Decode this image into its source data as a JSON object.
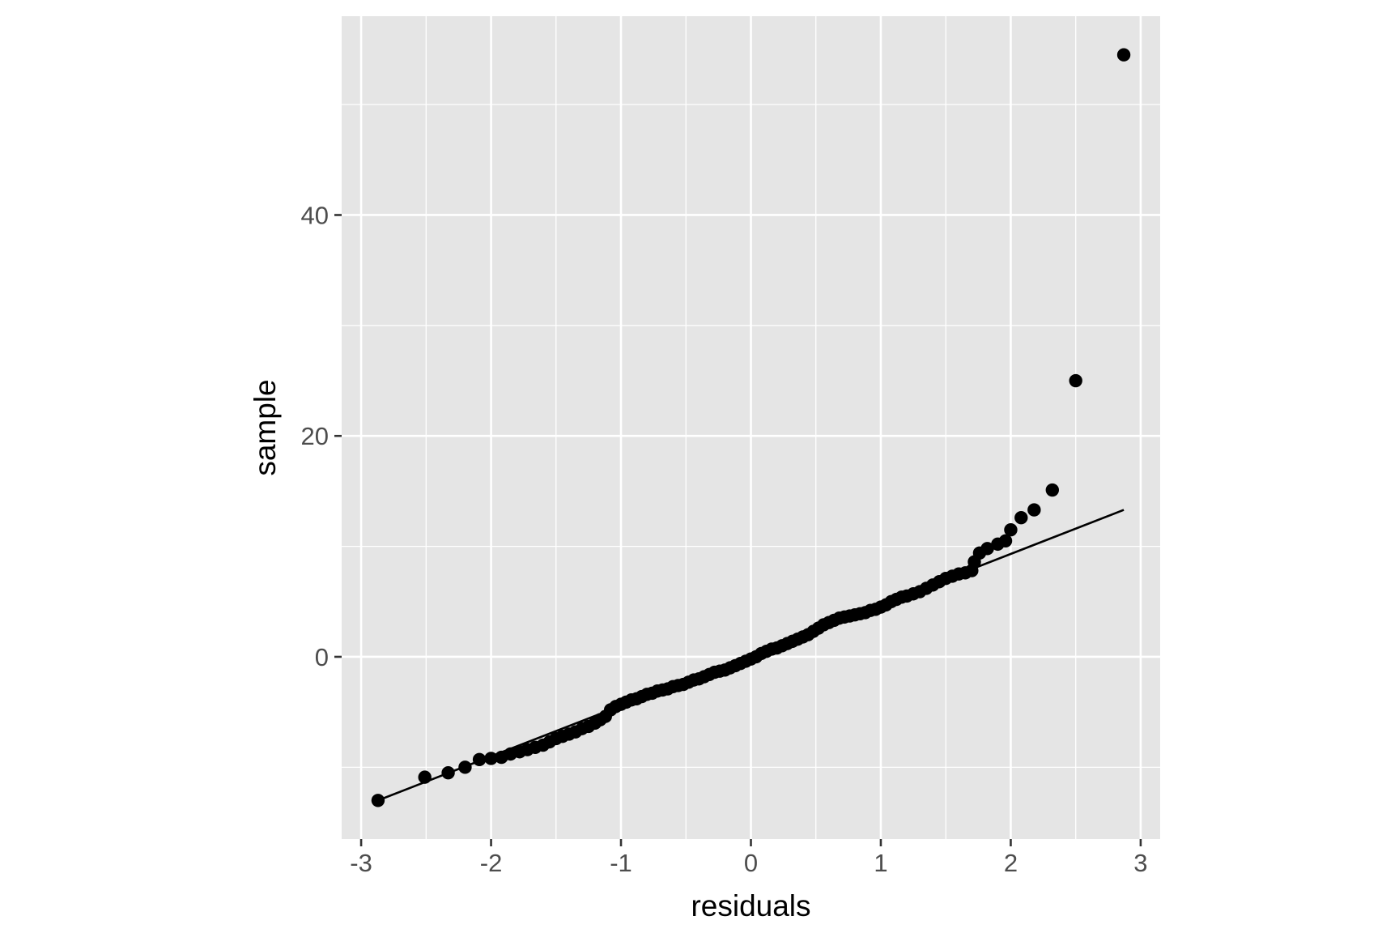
{
  "chart_data": {
    "type": "scatter",
    "subtype": "qq-plot",
    "xlabel": "residuals",
    "ylabel": "sample",
    "xlim": [
      -3.15,
      3.15
    ],
    "ylim": [
      -16.5,
      58
    ],
    "x_ticks": [
      -3,
      -2,
      -1,
      0,
      1,
      2,
      3
    ],
    "x_tick_labels": [
      "-3",
      "-2",
      "-1",
      "0",
      "1",
      "2",
      "3"
    ],
    "y_ticks": [
      0,
      20,
      40
    ],
    "y_tick_labels": [
      "0",
      "20",
      "40"
    ],
    "grid": true,
    "background_color": "#e5e5e5",
    "grid_color": "#ffffff",
    "point_color": "#000000",
    "reference_line": {
      "x": [
        -2.87,
        2.87
      ],
      "y": [
        -13.0,
        13.3
      ]
    },
    "series": [
      {
        "points": [
          [
            -2.87,
            -13.0
          ],
          [
            -2.51,
            -10.9
          ],
          [
            -2.33,
            -10.5
          ],
          [
            -2.2,
            -10.0
          ],
          [
            -2.09,
            -9.3
          ],
          [
            -2.0,
            -9.2
          ],
          [
            -1.92,
            -9.1
          ],
          [
            -1.85,
            -8.8
          ],
          [
            -1.78,
            -8.6
          ],
          [
            -1.72,
            -8.4
          ],
          [
            -1.66,
            -8.2
          ],
          [
            -1.6,
            -8.0
          ],
          [
            -1.55,
            -7.7
          ],
          [
            -1.5,
            -7.4
          ],
          [
            -1.45,
            -7.2
          ],
          [
            -1.4,
            -7.0
          ],
          [
            -1.35,
            -6.8
          ],
          [
            -1.3,
            -6.5
          ],
          [
            -1.25,
            -6.3
          ],
          [
            -1.2,
            -6.0
          ],
          [
            -1.16,
            -5.7
          ],
          [
            -1.12,
            -5.4
          ],
          [
            -1.08,
            -4.8
          ],
          [
            -1.04,
            -4.5
          ],
          [
            -1.0,
            -4.3
          ],
          [
            -0.96,
            -4.1
          ],
          [
            -0.92,
            -3.9
          ],
          [
            -0.88,
            -3.8
          ],
          [
            -0.84,
            -3.6
          ],
          [
            -0.8,
            -3.4
          ],
          [
            -0.76,
            -3.3
          ],
          [
            -0.72,
            -3.1
          ],
          [
            -0.68,
            -3.0
          ],
          [
            -0.64,
            -2.9
          ],
          [
            -0.6,
            -2.7
          ],
          [
            -0.56,
            -2.6
          ],
          [
            -0.52,
            -2.5
          ],
          [
            -0.48,
            -2.3
          ],
          [
            -0.44,
            -2.1
          ],
          [
            -0.4,
            -2.0
          ],
          [
            -0.36,
            -1.8
          ],
          [
            -0.32,
            -1.6
          ],
          [
            -0.28,
            -1.4
          ],
          [
            -0.24,
            -1.3
          ],
          [
            -0.2,
            -1.2
          ],
          [
            -0.16,
            -1.0
          ],
          [
            -0.12,
            -0.8
          ],
          [
            -0.08,
            -0.6
          ],
          [
            -0.04,
            -0.4
          ],
          [
            0.0,
            -0.2
          ],
          [
            0.04,
            0.0
          ],
          [
            0.08,
            0.3
          ],
          [
            0.12,
            0.5
          ],
          [
            0.16,
            0.7
          ],
          [
            0.2,
            0.8
          ],
          [
            0.24,
            1.0
          ],
          [
            0.28,
            1.2
          ],
          [
            0.32,
            1.4
          ],
          [
            0.36,
            1.6
          ],
          [
            0.4,
            1.8
          ],
          [
            0.44,
            2.0
          ],
          [
            0.48,
            2.3
          ],
          [
            0.52,
            2.6
          ],
          [
            0.56,
            2.9
          ],
          [
            0.6,
            3.1
          ],
          [
            0.64,
            3.3
          ],
          [
            0.68,
            3.5
          ],
          [
            0.72,
            3.6
          ],
          [
            0.76,
            3.7
          ],
          [
            0.8,
            3.8
          ],
          [
            0.84,
            3.9
          ],
          [
            0.88,
            4.0
          ],
          [
            0.92,
            4.2
          ],
          [
            0.96,
            4.3
          ],
          [
            1.0,
            4.5
          ],
          [
            1.04,
            4.7
          ],
          [
            1.08,
            5.0
          ],
          [
            1.12,
            5.2
          ],
          [
            1.16,
            5.4
          ],
          [
            1.2,
            5.5
          ],
          [
            1.25,
            5.7
          ],
          [
            1.3,
            5.9
          ],
          [
            1.35,
            6.2
          ],
          [
            1.4,
            6.5
          ],
          [
            1.45,
            6.8
          ],
          [
            1.5,
            7.1
          ],
          [
            1.55,
            7.3
          ],
          [
            1.6,
            7.5
          ],
          [
            1.65,
            7.6
          ],
          [
            1.7,
            7.8
          ],
          [
            1.72,
            8.6
          ],
          [
            1.76,
            9.4
          ],
          [
            1.82,
            9.8
          ],
          [
            1.9,
            10.2
          ],
          [
            1.96,
            10.5
          ],
          [
            2.0,
            11.5
          ],
          [
            2.08,
            12.6
          ],
          [
            2.18,
            13.3
          ],
          [
            2.32,
            15.1
          ],
          [
            2.5,
            25.0
          ],
          [
            2.87,
            54.5
          ]
        ]
      }
    ]
  }
}
